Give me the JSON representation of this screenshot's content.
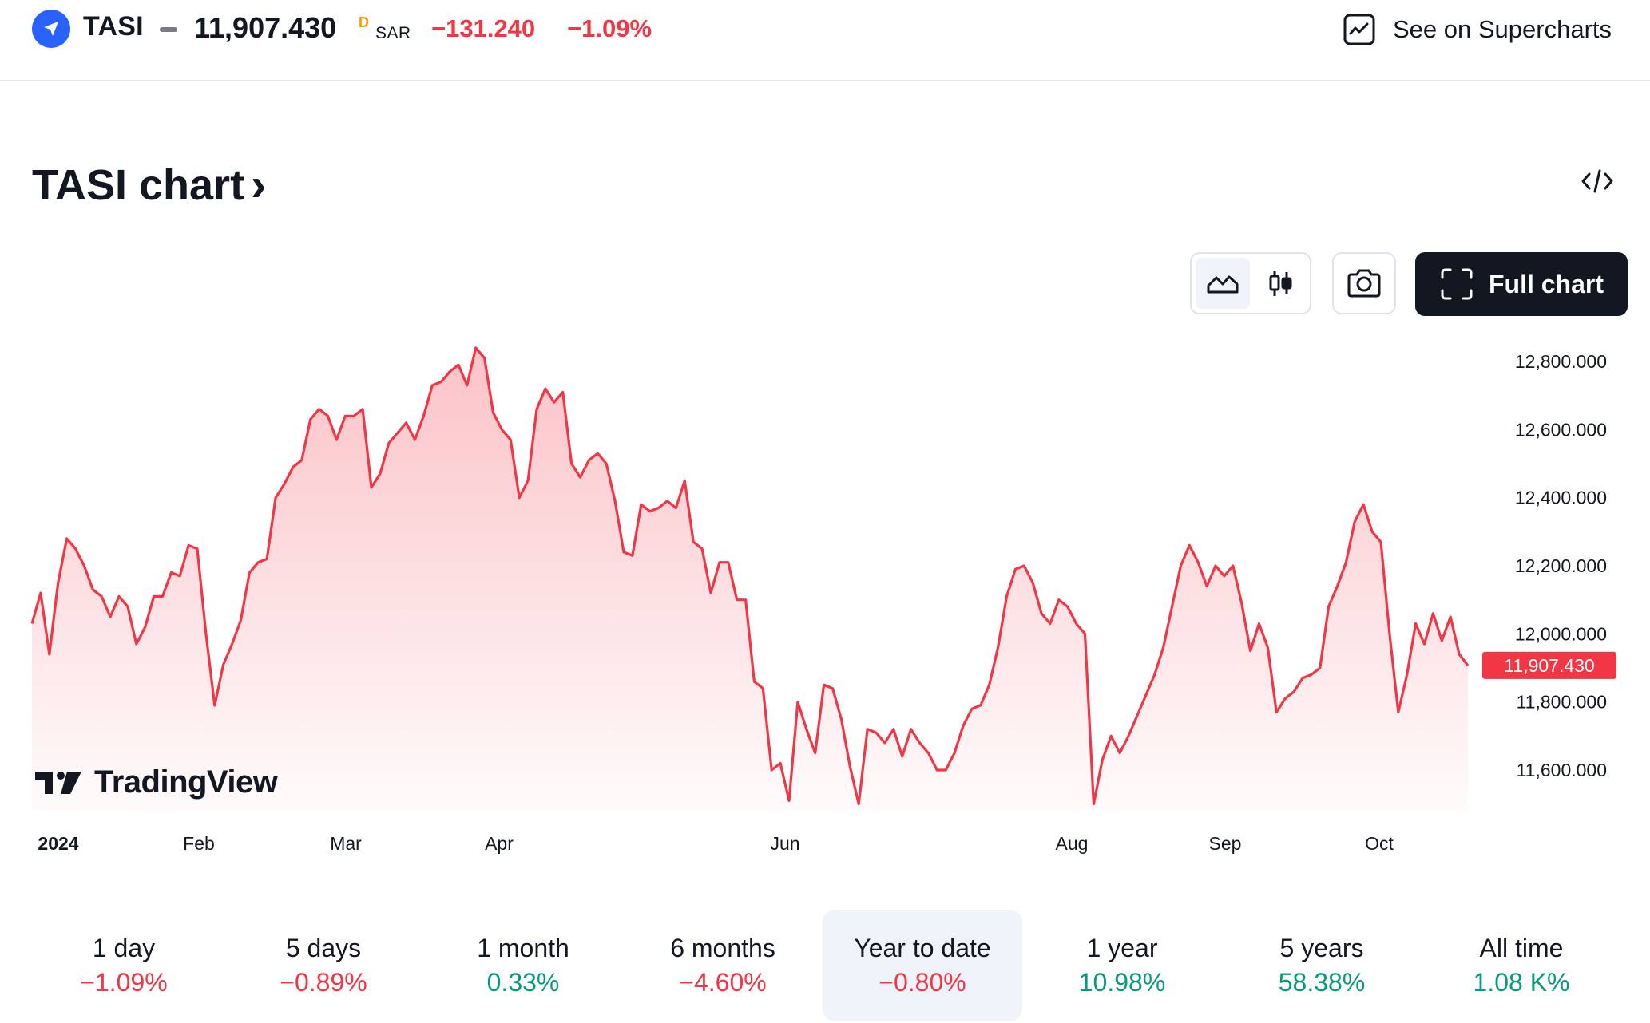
{
  "header": {
    "symbol": "TASI",
    "price": "11,907.430",
    "delayed_mark": "D",
    "currency": "SAR",
    "change": "−131.240",
    "change_percent": "−1.09%",
    "supercharts_label": "See on Supercharts"
  },
  "title": {
    "text": "TASI chart",
    "chevron": "›"
  },
  "toolbar": {
    "full_chart_label": "Full chart",
    "active_style": "area"
  },
  "brand": {
    "name": "TradingView"
  },
  "colors": {
    "line": "#f23645",
    "negative": "#f23645",
    "positive": "#089981",
    "brand_blue": "#2962ff",
    "dark": "#131722"
  },
  "chart_data": {
    "type": "area",
    "x_start": "2024-01-01",
    "x_end": "2024-10-22",
    "y_ticks": [
      "12,800.000",
      "12,600.000",
      "12,400.000",
      "12,200.000",
      "12,000.000",
      "11,800.000",
      "11,600.000"
    ],
    "ylim": [
      11500,
      12850
    ],
    "x_tick_labels": [
      "2024",
      "Feb",
      "Mar",
      "Apr",
      "Jun",
      "Aug",
      "Sep",
      "Oct"
    ],
    "last_price_label": "11,907.430",
    "last_value": 11907.43,
    "series": [
      {
        "values": [
          12030,
          12120,
          11940,
          12150,
          12280,
          12250,
          12200,
          12130,
          12110,
          12050,
          12110,
          12080,
          11970,
          12020,
          12110,
          12110,
          12180,
          12170,
          12260,
          12250,
          12000,
          11790,
          11910,
          11970,
          12040,
          12180,
          12210,
          12220,
          12400,
          12440,
          12490,
          12510,
          12630,
          12660,
          12640,
          12570,
          12640,
          12640,
          12660,
          12430,
          12470,
          12560,
          12590,
          12620,
          12570,
          12640,
          12730,
          12740,
          12770,
          12790,
          12730,
          12840,
          12810,
          12650,
          12600,
          12570,
          12400,
          12450,
          12660,
          12720,
          12680,
          12710,
          12500,
          12460,
          12510,
          12530,
          12500,
          12390,
          12240,
          12230,
          12380,
          12360,
          12370,
          12390,
          12370,
          12450,
          12270,
          12250,
          12120,
          12210,
          12210,
          12100,
          12100,
          11860,
          11840,
          11600,
          11620,
          11510,
          11800,
          11720,
          11650,
          11850,
          11840,
          11750,
          11610,
          11500,
          11720,
          11710,
          11680,
          11720,
          11640,
          11720,
          11680,
          11650,
          11600,
          11600,
          11650,
          11730,
          11780,
          11790,
          11850,
          11960,
          12110,
          12190,
          12200,
          12150,
          12060,
          12030,
          12100,
          12080,
          12030,
          12000,
          11500,
          11630,
          11700,
          11650,
          11700,
          11760,
          11820,
          11880,
          11960,
          12080,
          12200,
          12260,
          12210,
          12140,
          12200,
          12170,
          12200,
          12090,
          11950,
          12030,
          11960,
          11770,
          11810,
          11830,
          11870,
          11880,
          11900,
          12080,
          12140,
          12210,
          12330,
          12380,
          12300,
          12270,
          12000,
          11770,
          11880,
          12030,
          11970,
          12060,
          11980,
          12050,
          11940,
          11907
        ]
      }
    ]
  },
  "periods": [
    {
      "label": "1 day",
      "value": "−1.09%",
      "sign": "neg"
    },
    {
      "label": "5 days",
      "value": "−0.89%",
      "sign": "neg"
    },
    {
      "label": "1 month",
      "value": "0.33%",
      "sign": "pos"
    },
    {
      "label": "6 months",
      "value": "−4.60%",
      "sign": "neg"
    },
    {
      "label": "Year to date",
      "value": "−0.80%",
      "sign": "neg",
      "active": true
    },
    {
      "label": "1 year",
      "value": "10.98%",
      "sign": "pos"
    },
    {
      "label": "5 years",
      "value": "58.38%",
      "sign": "pos"
    },
    {
      "label": "All time",
      "value": "1.08 K%",
      "sign": "pos"
    }
  ]
}
